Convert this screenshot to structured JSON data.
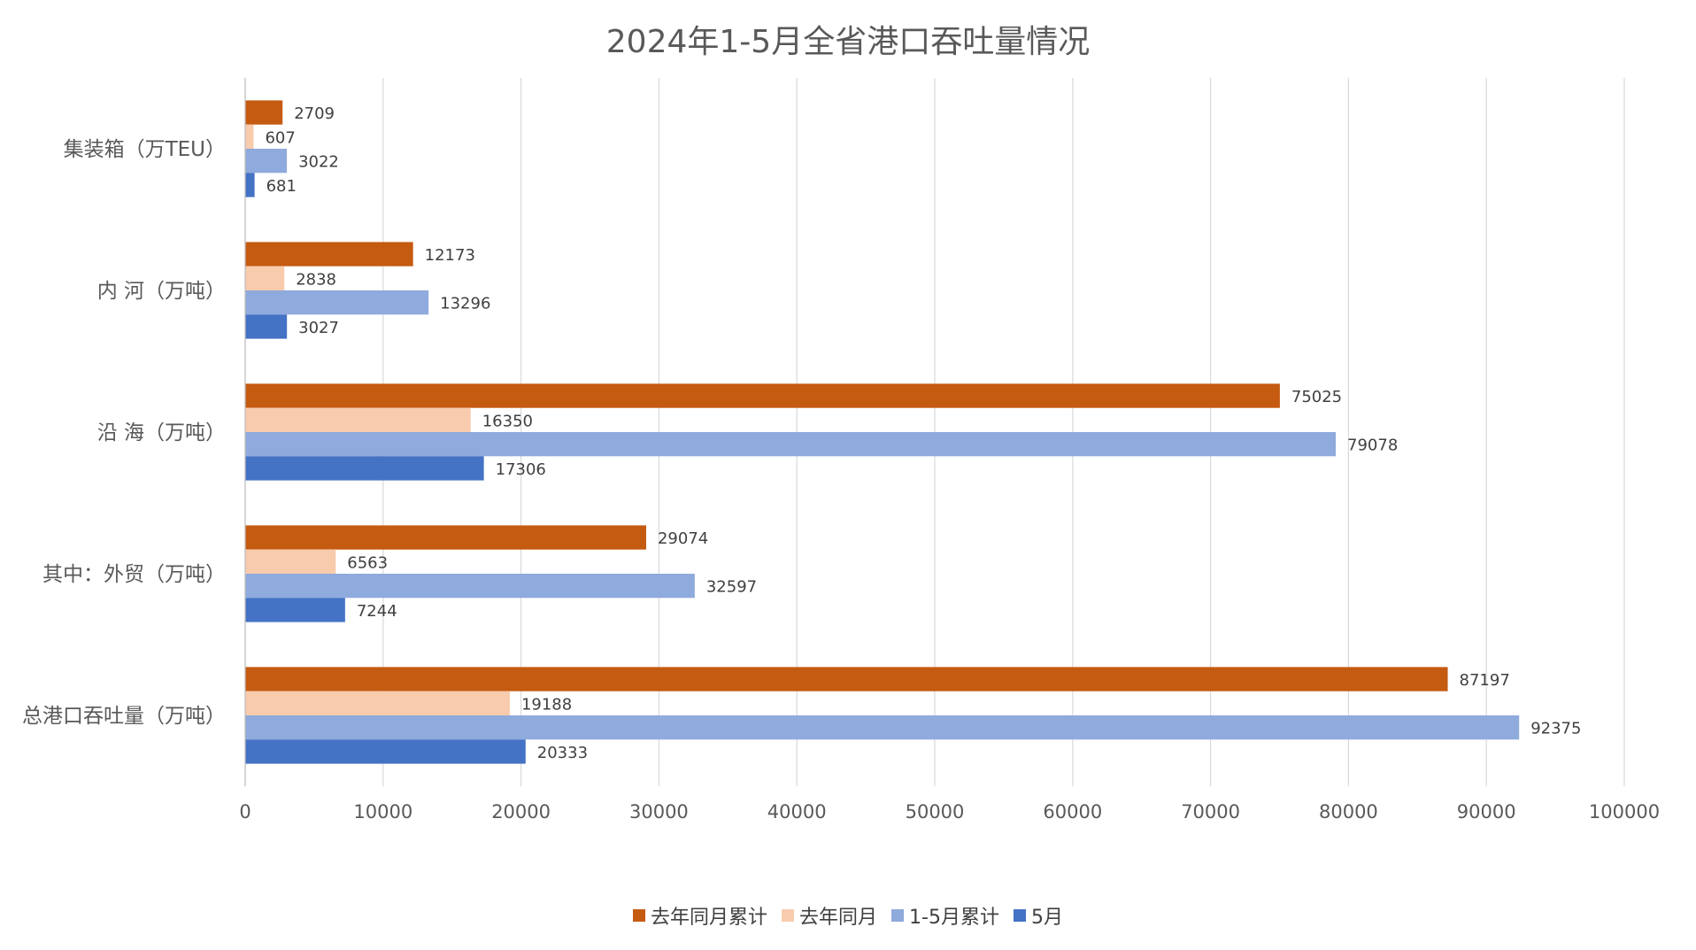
{
  "chart_data": {
    "type": "bar",
    "orientation": "horizontal",
    "title": "2024年1-5月全省港口吞吐量情况",
    "categories": [
      "集装箱（万TEU）",
      "内 河（万吨）",
      "沿 海（万吨）",
      "其中：外贸（万吨）",
      "总港口吞吐量（万吨）"
    ],
    "series": [
      {
        "name": "去年同月累计",
        "color": "#C55A11",
        "values": [
          2709,
          12173,
          75025,
          29074,
          87197
        ]
      },
      {
        "name": "去年同月",
        "color": "#F8CBAD",
        "values": [
          607,
          2838,
          16350,
          6563,
          19188
        ]
      },
      {
        "name": "1-5月累计",
        "color": "#8FAADC",
        "values": [
          3022,
          13296,
          79078,
          32597,
          92375
        ]
      },
      {
        "name": "5月",
        "color": "#4472C4",
        "values": [
          681,
          3027,
          17306,
          7244,
          20333
        ]
      }
    ],
    "xlim": [
      0,
      100000
    ],
    "xticks": [
      "0",
      "10000",
      "20000",
      "30000",
      "40000",
      "50000",
      "60000",
      "70000",
      "80000",
      "90000",
      "100000"
    ],
    "grid": "vertical",
    "legend_position": "bottom",
    "data_labels": true
  }
}
